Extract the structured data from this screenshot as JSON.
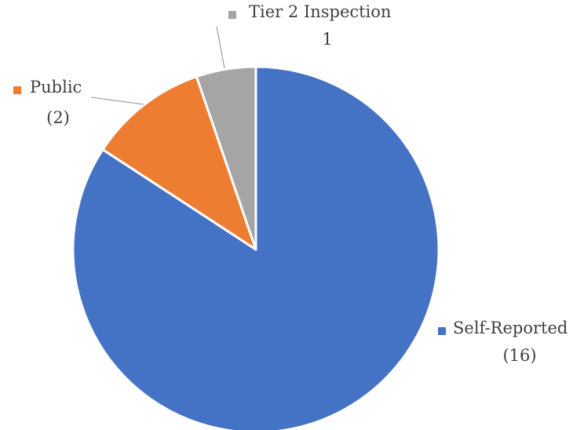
{
  "chart_data": {
    "type": "pie",
    "title": "",
    "slices": [
      {
        "label": "Self-Reported",
        "value": 16,
        "value_text": "(16)",
        "color": "#4472C4"
      },
      {
        "label": "Public",
        "value": 2,
        "value_text": "(2)",
        "color": "#ED7D31"
      },
      {
        "label": "Tier 2 Inspection",
        "value": 1,
        "value_text": "1",
        "color": "#A5A5A5"
      }
    ],
    "start_angle": "12 o'clock",
    "direction": "clockwise",
    "data_labels": "outside with legend key and leader lines"
  }
}
